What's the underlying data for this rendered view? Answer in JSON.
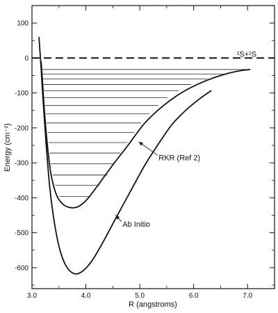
{
  "chart_data": {
    "type": "line",
    "title": "",
    "xlabel": "R (angstroms)",
    "ylabel": "Energy (cm⁻¹)",
    "xlim": [
      3.0,
      7.5
    ],
    "ylim": [
      -660,
      150
    ],
    "x_ticks": [
      3.0,
      4.0,
      5.0,
      6.0,
      7.0
    ],
    "x_tick_labels": [
      "3.0",
      "4.0",
      "5.0",
      "6.0",
      "7.0"
    ],
    "y_ticks": [
      100,
      0,
      -100,
      -200,
      -300,
      -400,
      -500,
      -600
    ],
    "y_tick_labels": [
      "100",
      "0",
      "-100",
      "-200",
      "-300",
      "-400",
      "-500",
      "-600"
    ],
    "grid": false,
    "series": [
      {
        "name": "Ab Initio",
        "x": [
          3.13,
          3.17,
          3.21,
          3.26,
          3.33,
          3.42,
          3.52,
          3.64,
          3.78,
          3.92,
          4.1,
          4.3,
          4.55,
          4.85,
          5.1,
          5.35,
          5.6,
          5.85,
          6.1,
          6.33
        ],
        "y": [
          60,
          -30,
          -130,
          -240,
          -370,
          -475,
          -550,
          -597,
          -617,
          -612,
          -583,
          -532,
          -460,
          -375,
          -305,
          -245,
          -190,
          -150,
          -118,
          -93
        ]
      },
      {
        "name": "RKR (Ref 2)",
        "x": [
          3.17,
          3.2,
          3.23,
          3.28,
          3.35,
          3.45,
          3.57,
          3.71,
          3.86,
          4.02,
          4.22,
          4.48,
          4.78,
          5.1,
          5.45,
          5.8,
          6.15,
          6.5,
          6.8,
          7.05
        ],
        "y": [
          -10,
          -80,
          -150,
          -240,
          -330,
          -390,
          -418,
          -428,
          -425,
          -405,
          -365,
          -310,
          -250,
          -185,
          -135,
          -97,
          -70,
          -50,
          -38,
          -33
        ]
      },
      {
        "name": "dissociation",
        "x": [
          3.0,
          7.5
        ],
        "y": [
          0,
          0
        ]
      }
    ],
    "vibrational_levels": [
      {
        "energy": -33,
        "x_min": 3.18,
        "x_max": 7.05
      },
      {
        "energy": -46,
        "x_min": 3.19,
        "x_max": 6.55
      },
      {
        "energy": -60,
        "x_min": 3.2,
        "x_max": 6.25
      },
      {
        "energy": -76,
        "x_min": 3.21,
        "x_max": 5.95
      },
      {
        "energy": -94,
        "x_min": 3.22,
        "x_max": 5.72
      },
      {
        "energy": -114,
        "x_min": 3.23,
        "x_max": 5.52
      },
      {
        "energy": -136,
        "x_min": 3.24,
        "x_max": 5.34
      },
      {
        "energy": -160,
        "x_min": 3.255,
        "x_max": 5.18
      },
      {
        "energy": -186,
        "x_min": 3.27,
        "x_max": 5.02
      },
      {
        "energy": -213,
        "x_min": 3.29,
        "x_max": 4.9
      },
      {
        "energy": -242,
        "x_min": 3.31,
        "x_max": 4.77
      },
      {
        "energy": -272,
        "x_min": 3.33,
        "x_max": 4.64
      },
      {
        "energy": -303,
        "x_min": 3.35,
        "x_max": 4.52
      },
      {
        "energy": -335,
        "x_min": 3.38,
        "x_max": 4.4
      },
      {
        "energy": -364,
        "x_min": 3.43,
        "x_max": 4.25
      },
      {
        "energy": -396,
        "x_min": 3.51,
        "x_max": 4.07
      }
    ],
    "annotations": [
      {
        "text": "¹S+¹S",
        "x": 6.8,
        "y": 12
      },
      {
        "text": "RKR (Ref 2)",
        "x": 5.35,
        "y": -285
      },
      {
        "text": "Ab Initio",
        "x": 4.68,
        "y": -475
      }
    ],
    "arrows": [
      {
        "from": [
          5.33,
          -278
        ],
        "to": [
          4.98,
          -240
        ]
      },
      {
        "from": [
          4.66,
          -468
        ],
        "to": [
          4.55,
          -450
        ]
      }
    ]
  }
}
